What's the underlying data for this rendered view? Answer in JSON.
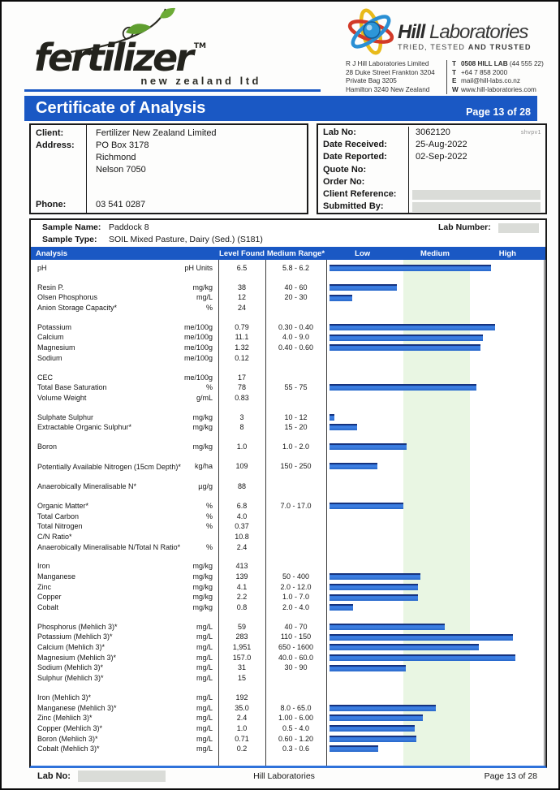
{
  "header": {
    "fertilizer_logo": {
      "name": "fertilizer",
      "tm": "TM",
      "subtitle": "new zealand ltd"
    },
    "hill_logo": {
      "title_bold": "Hill",
      "title_rest": " Laboratories",
      "tagline_normal": "TRIED, TESTED ",
      "tagline_bold": "AND TRUSTED",
      "address_lines": [
        "R J Hill Laboratories Limited",
        "28 Duke Street Frankton 3204",
        "Private Bag 3205",
        "Hamilton 3240 New Zealand"
      ],
      "contact_lines": [
        {
          "prefix": "T",
          "bold": "0508 HILL LAB",
          "rest": " (44 555 22)"
        },
        {
          "prefix": "T",
          "bold": "",
          "rest": "+64 7 858 2000"
        },
        {
          "prefix": "E",
          "bold": "",
          "rest": "mail@hill-labs.co.nz"
        },
        {
          "prefix": "W",
          "bold": "",
          "rest": "www.hill-laboratories.com"
        }
      ]
    }
  },
  "banner": {
    "title": "Certificate of Analysis",
    "page": "Page 13 of 28"
  },
  "client": {
    "client_label": "Client:",
    "client_value": "Fertilizer New Zealand Limited",
    "address_label": "Address:",
    "address_lines": [
      "PO Box 3178",
      "Richmond",
      "Nelson 7050"
    ],
    "phone_label": "Phone:",
    "phone_value": "03 541 0287"
  },
  "lab_info": {
    "rows": [
      {
        "label": "Lab No:",
        "value": "3062120",
        "note": "shvpv1",
        "redacted": false
      },
      {
        "label": "Date Received:",
        "value": "25-Aug-2022",
        "redacted": false
      },
      {
        "label": "Date Reported:",
        "value": "02-Sep-2022",
        "redacted": false
      },
      {
        "label": "Quote No:",
        "value": "",
        "redacted": false
      },
      {
        "label": "Order No:",
        "value": "",
        "redacted": false
      },
      {
        "label": "Client Reference:",
        "value": "",
        "redacted": true
      },
      {
        "label": "Submitted By:",
        "value": "",
        "redacted": true
      }
    ]
  },
  "sample": {
    "name_label": "Sample Name:",
    "name_value": "Paddock 8",
    "lab_number_label": "Lab Number:",
    "type_label": "Sample Type:",
    "type_value": "SOIL Mixed Pasture, Dairy (Sed.) (S181)"
  },
  "analysis": {
    "columns": {
      "analysis": "Analysis",
      "level_found": "Level Found",
      "medium_range": "Medium Range*",
      "low": "Low",
      "medium": "Medium",
      "high": "High"
    },
    "rows": [
      {
        "name": "pH",
        "unit": "pH Units",
        "value": "6.5",
        "range": "5.8 - 6.2",
        "bar": 75.1
      },
      {
        "spacer": true
      },
      {
        "name": "Resin P.",
        "unit": "mg/kg",
        "value": "38",
        "range": "40 - 60",
        "bar": 31.3
      },
      {
        "name": "Olsen Phosphorus",
        "unit": "mg/L",
        "value": "12",
        "range": "20 - 30",
        "bar": 10.5
      },
      {
        "name": "Anion Storage Capacity*",
        "unit": "%",
        "value": "24",
        "range": ""
      },
      {
        "spacer": true
      },
      {
        "name": "Potassium",
        "unit": "me/100g",
        "value": "0.79",
        "range": "0.30 - 0.40",
        "bar": 77.0
      },
      {
        "name": "Calcium",
        "unit": "me/100g",
        "value": "11.1",
        "range": "4.0 - 9.0",
        "bar": 71.3
      },
      {
        "name": "Magnesium",
        "unit": "me/100g",
        "value": "1.32",
        "range": "0.40 - 0.60",
        "bar": 70.2
      },
      {
        "name": "Sodium",
        "unit": "me/100g",
        "value": "0.12",
        "range": ""
      },
      {
        "spacer": true
      },
      {
        "name": "CEC",
        "unit": "me/100g",
        "value": "17",
        "range": ""
      },
      {
        "name": "Total Base Saturation",
        "unit": "%",
        "value": "78",
        "range": "55 - 75",
        "bar": 68.4
      },
      {
        "name": "Volume Weight",
        "unit": "g/mL",
        "value": "0.83",
        "range": ""
      },
      {
        "spacer": true
      },
      {
        "name": "Sulphate Sulphur",
        "unit": "mg/kg",
        "value": "3",
        "range": "10 - 12",
        "bar": 2.4
      },
      {
        "name": "Extractable Organic Sulphur*",
        "unit": "mg/kg",
        "value": "8",
        "range": "15 - 20",
        "bar": 12.8
      },
      {
        "spacer": true
      },
      {
        "name": "Boron",
        "unit": "mg/kg",
        "value": "1.0",
        "range": "1.0 - 2.0",
        "bar": 36.0
      },
      {
        "spacer": true
      },
      {
        "name": "Potentially Available Nitrogen (15cm Depth)*",
        "unit": "kg/ha",
        "value": "109",
        "range": "150 - 250",
        "bar": 22.3,
        "tall": true
      },
      {
        "name": "Anaerobically Mineralisable N*",
        "unit": "µg/g",
        "value": "88",
        "range": ""
      },
      {
        "spacer": true
      },
      {
        "name": "Organic Matter*",
        "unit": "%",
        "value": "6.8",
        "range": "7.0 - 17.0",
        "bar": 34.3
      },
      {
        "name": "Total Carbon",
        "unit": "%",
        "value": "4.0",
        "range": ""
      },
      {
        "name": "Total Nitrogen",
        "unit": "%",
        "value": "0.37",
        "range": ""
      },
      {
        "name": "C/N Ratio*",
        "unit": "",
        "value": "10.8",
        "range": ""
      },
      {
        "name": "Anaerobically Mineralisable N/Total N Ratio*",
        "unit": "%",
        "value": "2.4",
        "range": ""
      },
      {
        "spacer": true
      },
      {
        "name": "Iron",
        "unit": "mg/kg",
        "value": "413",
        "range": ""
      },
      {
        "name": "Manganese",
        "unit": "mg/kg",
        "value": "139",
        "range": "50 - 400",
        "bar": 42.3
      },
      {
        "name": "Zinc",
        "unit": "mg/kg",
        "value": "4.1",
        "range": "2.0 - 12.0",
        "bar": 41.1
      },
      {
        "name": "Copper",
        "unit": "mg/kg",
        "value": "2.2",
        "range": "1.0 - 7.0",
        "bar": 41.1
      },
      {
        "name": "Cobalt",
        "unit": "mg/kg",
        "value": "0.8",
        "range": "2.0 - 4.0",
        "bar": 11.1
      },
      {
        "spacer": true
      },
      {
        "name": "Phosphorus (Mehlich 3)*",
        "unit": "mg/L",
        "value": "59",
        "range": "40 - 70",
        "bar": 53.6
      },
      {
        "name": "Potassium (Mehlich 3)*",
        "unit": "mg/L",
        "value": "283",
        "range": "110 - 150",
        "bar": 85.4
      },
      {
        "name": "Calcium (Mehlich 3)*",
        "unit": "mg/L",
        "value": "1,951",
        "range": "650 - 1600",
        "bar": 69.5
      },
      {
        "name": "Magnesium (Mehlich 3)*",
        "unit": "mg/L",
        "value": "157.0",
        "range": "40.0 - 60.0",
        "bar": 86.5
      },
      {
        "name": "Sodium (Mehlich 3)*",
        "unit": "mg/L",
        "value": "31",
        "range": "30 - 90",
        "bar": 35.4
      },
      {
        "name": "Sulphur (Mehlich 3)*",
        "unit": "mg/L",
        "value": "15",
        "range": ""
      },
      {
        "spacer": true
      },
      {
        "name": "Iron (Mehlich 3)*",
        "unit": "mg/L",
        "value": "192",
        "range": ""
      },
      {
        "name": "Manganese (Mehlich 3)*",
        "unit": "mg/L",
        "value": "35.0",
        "range": "8.0 - 65.0",
        "bar": 49.5
      },
      {
        "name": "Zinc (Mehlich 3)*",
        "unit": "mg/L",
        "value": "2.4",
        "range": "1.00 - 6.00",
        "bar": 43.5
      },
      {
        "name": "Copper (Mehlich 3)*",
        "unit": "mg/L",
        "value": "1.0",
        "range": "0.5 - 4.0",
        "bar": 39.5
      },
      {
        "name": "Boron (Mehlich 3)*",
        "unit": "mg/L",
        "value": "0.71",
        "range": "0.60 - 1.20",
        "bar": 40.4
      },
      {
        "name": "Cobalt (Mehlich 3)*",
        "unit": "mg/L",
        "value": "0.2",
        "range": "0.3 - 0.6",
        "bar": 22.5
      }
    ]
  },
  "footer": {
    "lab_no_label": "Lab No:",
    "center": "Hill Laboratories",
    "page": "Page 13 of 28"
  },
  "colors": {
    "banner_blue": "#1a58c4",
    "bar_fill": "#2f74dc",
    "bar_edge": "#16337f",
    "medium_band_green": "#e9f6e3",
    "redacted_gray": "#dadcd8"
  }
}
